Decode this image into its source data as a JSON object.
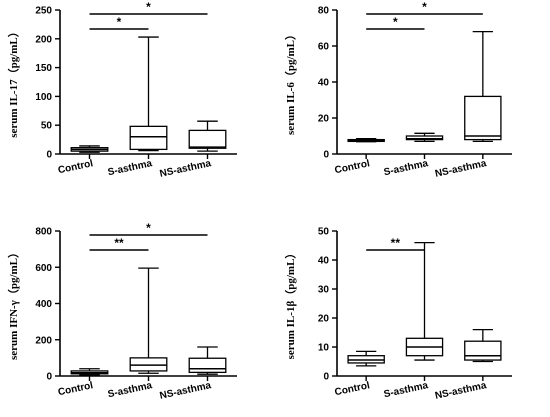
{
  "chart_data": [
    {
      "type": "boxplot",
      "ylabel": "serum IL-17（pg/mL）",
      "categories": [
        "Control",
        "S-asthma",
        "NS-asthma"
      ],
      "ylim": [
        0,
        250
      ],
      "yticks": [
        0,
        50,
        100,
        150,
        200,
        250
      ],
      "boxes": [
        {
          "min": 3,
          "q1": 5,
          "median": 8,
          "q3": 11,
          "max": 14
        },
        {
          "min": 6,
          "q1": 8,
          "median": 30,
          "q3": 48,
          "max": 203
        },
        {
          "min": 5,
          "q1": 10,
          "median": 12,
          "q3": 41,
          "max": 57
        }
      ],
      "significance": [
        {
          "from": 0,
          "to": 1,
          "level": 1,
          "label": "*"
        },
        {
          "from": 0,
          "to": 2,
          "level": 2,
          "label": "*"
        }
      ]
    },
    {
      "type": "boxplot",
      "ylabel": "serum IL-6（pg/mL）",
      "categories": [
        "Control",
        "S-asthma",
        "NS-asthma"
      ],
      "ylim": [
        0,
        80
      ],
      "yticks": [
        0,
        20,
        40,
        60,
        80
      ],
      "boxes": [
        {
          "min": 6.8,
          "q1": 7,
          "median": 7.5,
          "q3": 8,
          "max": 8.5
        },
        {
          "min": 7,
          "q1": 8,
          "median": 8.5,
          "q3": 10,
          "max": 11.5
        },
        {
          "min": 7,
          "q1": 8,
          "median": 10,
          "q3": 32,
          "max": 68
        }
      ],
      "significance": [
        {
          "from": 0,
          "to": 1,
          "level": 1,
          "label": "*"
        },
        {
          "from": 0,
          "to": 2,
          "level": 2,
          "label": "*"
        }
      ]
    },
    {
      "type": "boxplot",
      "ylabel": "serum IFN-γ（pg/mL）",
      "categories": [
        "Control",
        "S-asthma",
        "NS-asthma"
      ],
      "ylim": [
        0,
        800
      ],
      "yticks": [
        0,
        200,
        400,
        600,
        800
      ],
      "boxes": [
        {
          "min": 5,
          "q1": 12,
          "median": 18,
          "q3": 28,
          "max": 40
        },
        {
          "min": 15,
          "q1": 28,
          "median": 60,
          "q3": 100,
          "max": 595
        },
        {
          "min": 10,
          "q1": 20,
          "median": 40,
          "q3": 98,
          "max": 160
        }
      ],
      "significance": [
        {
          "from": 0,
          "to": 1,
          "level": 1,
          "label": "**"
        },
        {
          "from": 0,
          "to": 2,
          "level": 2,
          "label": "*"
        }
      ]
    },
    {
      "type": "boxplot",
      "ylabel": "serum IL-1β（pg/mL）",
      "categories": [
        "Control",
        "S-asthma",
        "NS-asthma"
      ],
      "ylim": [
        0,
        50
      ],
      "yticks": [
        0,
        10,
        20,
        30,
        40,
        50
      ],
      "boxes": [
        {
          "min": 3.5,
          "q1": 4.5,
          "median": 5.5,
          "q3": 7,
          "max": 8.5
        },
        {
          "min": 5.5,
          "q1": 7,
          "median": 10,
          "q3": 13,
          "max": 46
        },
        {
          "min": 5,
          "q1": 5.5,
          "median": 7,
          "q3": 12,
          "max": 16
        }
      ],
      "significance": [
        {
          "from": 0,
          "to": 1,
          "level": 1,
          "label": "**"
        }
      ]
    }
  ]
}
